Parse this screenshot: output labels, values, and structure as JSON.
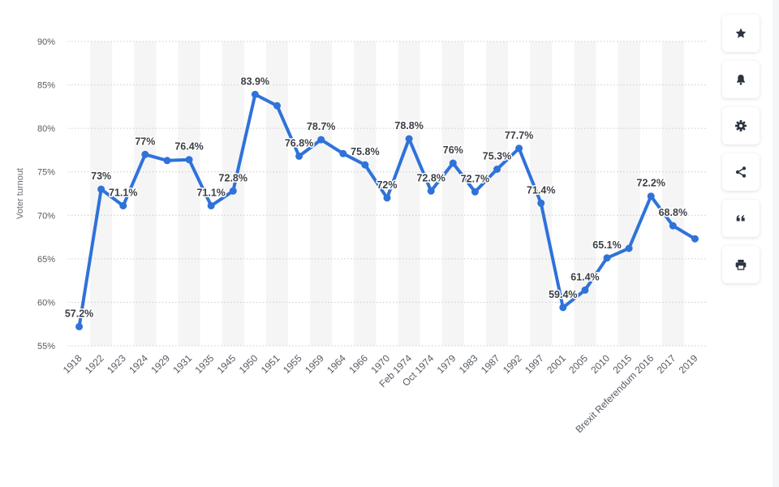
{
  "chart_data": {
    "type": "line",
    "ylabel": "Voter turnout",
    "xlabel": "",
    "title": "",
    "ylim": [
      55,
      90
    ],
    "yticks": [
      "55%",
      "60%",
      "65%",
      "70%",
      "75%",
      "80%",
      "85%",
      "90%"
    ],
    "grid": true,
    "categories": [
      "1918",
      "1922",
      "1923",
      "1924",
      "1929",
      "1931",
      "1935",
      "1945",
      "1950",
      "1951",
      "1955",
      "1959",
      "1964",
      "1966",
      "1970",
      "Feb 1974",
      "Oct 1974",
      "1979",
      "1983",
      "1987",
      "1992",
      "1997",
      "2001",
      "2005",
      "2010",
      "2015",
      "Brexit Referendum 2016",
      "2017",
      "2019"
    ],
    "values": [
      57.2,
      73,
      71.1,
      77,
      76.3,
      76.4,
      71.1,
      72.8,
      83.9,
      82.6,
      76.8,
      78.7,
      77.1,
      75.8,
      72,
      78.8,
      72.8,
      76,
      72.7,
      75.3,
      77.7,
      71.4,
      59.4,
      61.4,
      65.1,
      66.2,
      72.2,
      68.8,
      67.3
    ],
    "data_labels": [
      "57.2%",
      "73%",
      "71.1%",
      "77%",
      "",
      "76.4%",
      "71.1%",
      "72.8%",
      "83.9%",
      "",
      "76.8%",
      "78.7%",
      "",
      "75.8%",
      "72%",
      "78.8%",
      "72.8%",
      "76%",
      "72.7%",
      "75.3%",
      "77.7%",
      "71.4%",
      "59.4%",
      "61.4%",
      "65.1%",
      "",
      "72.2%",
      "68.8%",
      ""
    ],
    "series_color": "#2f72d9"
  },
  "toolbar": [
    {
      "name": "favorite-button",
      "icon": "star-icon"
    },
    {
      "name": "notification-button",
      "icon": "bell-icon"
    },
    {
      "name": "settings-button",
      "icon": "gear-icon"
    },
    {
      "name": "share-button",
      "icon": "share-icon"
    },
    {
      "name": "cite-button",
      "icon": "quote-icon"
    },
    {
      "name": "print-button",
      "icon": "print-icon"
    }
  ]
}
